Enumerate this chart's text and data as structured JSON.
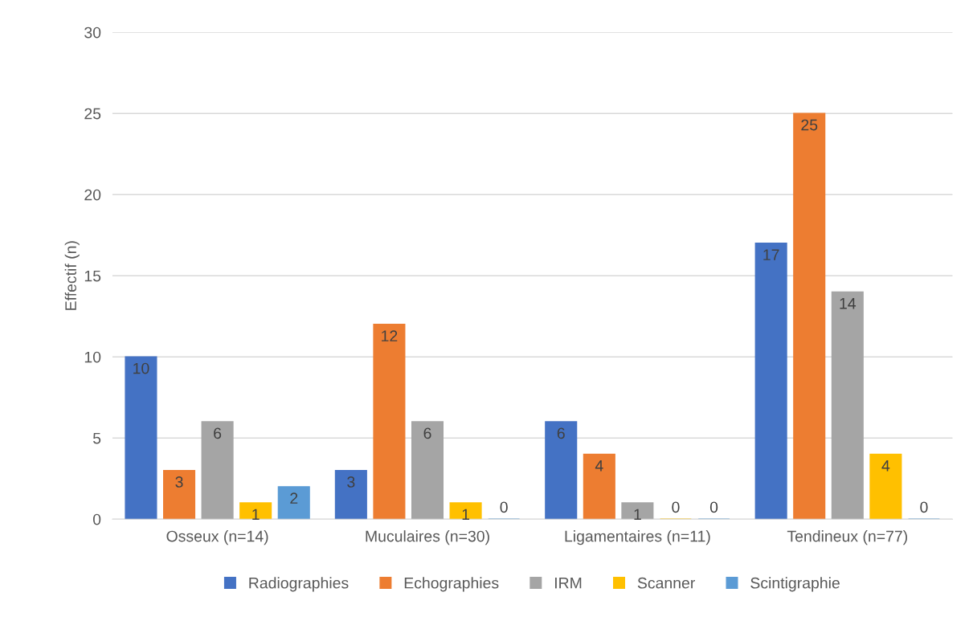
{
  "chart_data": {
    "type": "bar",
    "ylabel": "Effectif (n)",
    "categories": [
      "Osseux (n=14)",
      "Muculaires (n=30)",
      "Ligamentaires (n=11)",
      "Tendineux (n=77)"
    ],
    "series": [
      {
        "name": "Radiographies",
        "color": "#4472c4",
        "values": [
          10,
          3,
          6,
          17
        ]
      },
      {
        "name": "Echographies",
        "color": "#ed7d31",
        "values": [
          3,
          12,
          4,
          25
        ]
      },
      {
        "name": "IRM",
        "color": "#a5a5a5",
        "values": [
          6,
          6,
          1,
          14
        ]
      },
      {
        "name": "Scanner",
        "color": "#ffc000",
        "values": [
          1,
          1,
          0,
          4
        ]
      },
      {
        "name": "Scintigraphie",
        "color": "#5b9bd5",
        "values": [
          2,
          0,
          0,
          0
        ]
      }
    ],
    "ylim": [
      0,
      30
    ],
    "yticks": [
      0,
      5,
      10,
      15,
      20,
      25,
      30
    ],
    "grid": "y",
    "legend": "bottom",
    "data_labels": true
  }
}
